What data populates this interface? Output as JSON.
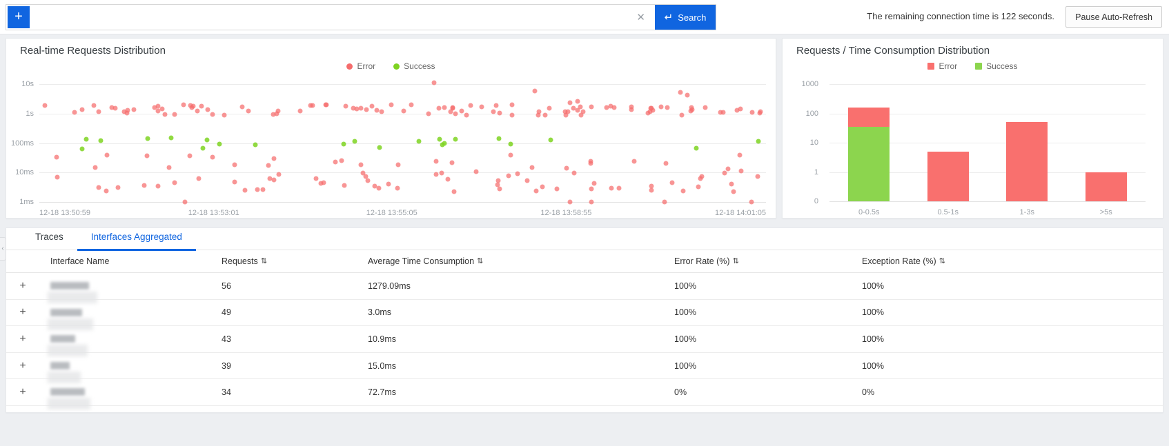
{
  "colors": {
    "accent": "#1065e0",
    "error": "#f56c6c",
    "success": "#7ed321",
    "bar_error": "#f9706e",
    "bar_success": "#8cd54e"
  },
  "topbar": {
    "add_label": "+",
    "search_value": "",
    "search_placeholder": "",
    "clear_icon": "✕",
    "search_button": {
      "icon": "↵",
      "label": "Search"
    },
    "status_text": "The remaining connection time is 122 seconds.",
    "pause_button_label": "Pause Auto-Refresh"
  },
  "chart_data": [
    {
      "type": "scatter",
      "title": "Real-time Requests Distribution",
      "yscale": "log",
      "yunit": "response time",
      "ytick_labels": [
        "10s",
        "1s",
        "100ms",
        "10ms",
        "1ms"
      ],
      "xtick_labels": [
        "12-18 13:50:59",
        "12-18 13:53:01",
        "12-18 13:55:05",
        "12-18 13:58:55",
        "12-18 14:01:05"
      ],
      "legend": [
        {
          "name": "Error",
          "color": "#f56c6c"
        },
        {
          "name": "Success",
          "color": "#7ed321"
        }
      ],
      "series": [
        {
          "name": "Error",
          "color": "#f56c6c",
          "clusters": [
            {
              "count": 100,
              "x": [
                0.5,
                99.5
              ],
              "ms": [
                850,
                2000
              ]
            },
            {
              "count": 50,
              "x": [
                1,
                99
              ],
              "ms": [
                2.2,
                9
              ]
            },
            {
              "count": 32,
              "x": [
                2,
                98
              ],
              "ms": [
                9,
                40
              ]
            }
          ],
          "points": [
            [
              54.3,
              11000
            ],
            [
              68.2,
              5900
            ],
            [
              74.1,
              2600
            ],
            [
              73.0,
              2300
            ],
            [
              88.2,
              5300
            ],
            [
              89.2,
              4200
            ],
            [
              20,
              1
            ],
            [
              73,
              1
            ],
            [
              76,
              1
            ],
            [
              86,
              1
            ],
            [
              98,
              1
            ]
          ]
        },
        {
          "name": "Success",
          "color": "#7ed321",
          "clusters": [
            {
              "count": 22,
              "x": [
                1,
                99
              ],
              "ms": [
                60,
                150
              ]
            }
          ],
          "points": []
        }
      ]
    },
    {
      "type": "bar",
      "stacked": true,
      "title": "Requests / Time Consumption Distribution",
      "yscale": "log",
      "ytick_labels": [
        "1000",
        "100",
        "10",
        "1",
        "0"
      ],
      "categories": [
        "0-0.5s",
        "0.5-1s",
        "1-3s",
        ">5s"
      ],
      "legend": [
        {
          "name": "Error",
          "color": "#f9706e"
        },
        {
          "name": "Success",
          "color": "#8cd54e"
        }
      ],
      "series": [
        {
          "name": "Error",
          "color": "#f9706e",
          "values": [
            125,
            5,
            50,
            1
          ]
        },
        {
          "name": "Success",
          "color": "#8cd54e",
          "values": [
            35,
            0,
            0,
            0
          ]
        }
      ]
    }
  ],
  "tabs": [
    {
      "label": "Traces",
      "active": false
    },
    {
      "label": "Interfaces Aggregated",
      "active": true
    }
  ],
  "table": {
    "sort_icon": "⇅",
    "expander_icon": "+",
    "columns": [
      {
        "label": "Interface Name",
        "sortable": false
      },
      {
        "label": "Requests",
        "sortable": true
      },
      {
        "label": "Average Time Consumption",
        "sortable": true
      },
      {
        "label": "Error Rate (%)",
        "sortable": true
      },
      {
        "label": "Exception Rate (%)",
        "sortable": true
      }
    ],
    "rows": [
      {
        "name_redacted": true,
        "requests": "56",
        "avg_time": "1279.09ms",
        "error_rate": "100%",
        "exception_rate": "100%",
        "blur_w": 56,
        "tail_w": 72
      },
      {
        "name_redacted": true,
        "requests": "49",
        "avg_time": "3.0ms",
        "error_rate": "100%",
        "exception_rate": "100%",
        "blur_w": 46,
        "tail_w": 66
      },
      {
        "name_redacted": true,
        "requests": "43",
        "avg_time": "10.9ms",
        "error_rate": "100%",
        "exception_rate": "100%",
        "blur_w": 36,
        "tail_w": 58
      },
      {
        "name_redacted": true,
        "requests": "39",
        "avg_time": "15.0ms",
        "error_rate": "100%",
        "exception_rate": "100%",
        "blur_w": 28,
        "tail_w": 48
      },
      {
        "name_redacted": true,
        "requests": "34",
        "avg_time": "72.7ms",
        "error_rate": "0%",
        "exception_rate": "0%",
        "blur_w": 50,
        "tail_w": 62
      }
    ]
  }
}
